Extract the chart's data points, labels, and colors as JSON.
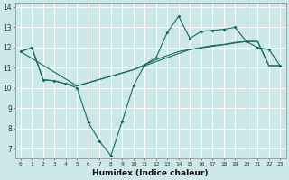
{
  "xlabel": "Humidex (Indice chaleur)",
  "bg_color": "#cde8e8",
  "grid_color": "#ffffff",
  "line_color": "#1a6b5e",
  "xlim": [
    -0.5,
    23.5
  ],
  "ylim": [
    6.5,
    14.2
  ],
  "yticks": [
    7,
    8,
    9,
    10,
    11,
    12,
    13,
    14
  ],
  "xticks": [
    0,
    1,
    2,
    3,
    4,
    5,
    6,
    7,
    8,
    9,
    10,
    11,
    12,
    13,
    14,
    15,
    16,
    17,
    18,
    19,
    20,
    21,
    22,
    23
  ],
  "line1_x": [
    0,
    1,
    2,
    3,
    4,
    5,
    6,
    7,
    8,
    9,
    10,
    11,
    12,
    13,
    14,
    15,
    16,
    17,
    18,
    19,
    20,
    21,
    22,
    23
  ],
  "line1_y": [
    11.8,
    12.0,
    10.4,
    10.35,
    10.2,
    10.0,
    8.3,
    7.35,
    6.65,
    8.35,
    10.1,
    11.15,
    11.5,
    12.75,
    13.55,
    12.45,
    12.8,
    12.85,
    12.9,
    13.0,
    12.3,
    12.0,
    11.9,
    11.1
  ],
  "line2_x": [
    0,
    1,
    2,
    3,
    4,
    5,
    10,
    11,
    12,
    13,
    14,
    15,
    16,
    17,
    18,
    19,
    20,
    21,
    22,
    23
  ],
  "line2_y": [
    11.8,
    12.0,
    10.4,
    10.35,
    10.2,
    10.1,
    10.9,
    11.15,
    11.4,
    11.6,
    11.8,
    11.9,
    12.0,
    12.1,
    12.15,
    12.25,
    12.3,
    12.3,
    11.1,
    11.1
  ],
  "line3_x": [
    0,
    5,
    10,
    15,
    20,
    21,
    22,
    23
  ],
  "line3_y": [
    11.8,
    10.1,
    10.9,
    11.9,
    12.3,
    12.3,
    11.1,
    11.1
  ]
}
